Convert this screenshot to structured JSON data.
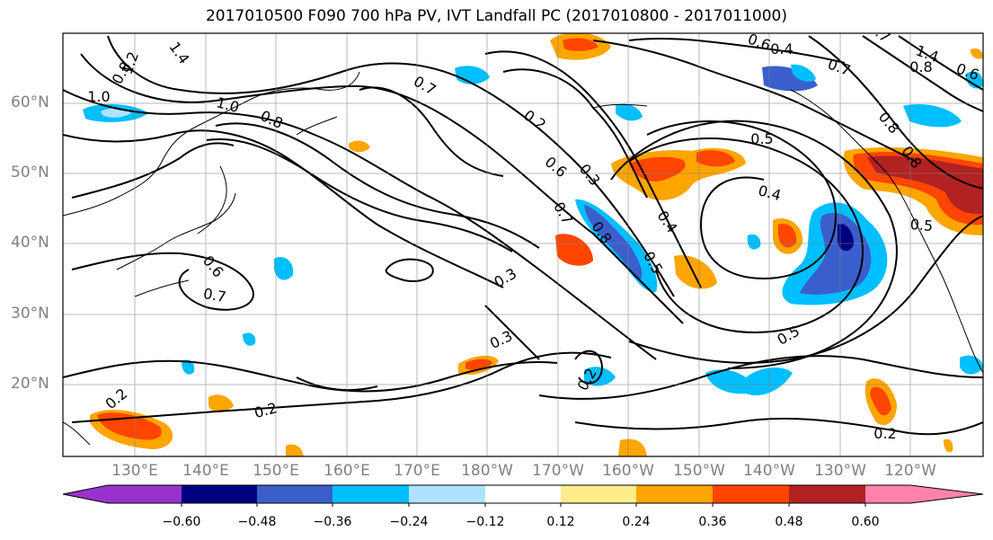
{
  "title": "2017010500 F090 700 hPa PV, IVT Landfall PC (2017010800 - 2017011000)",
  "lat_labels": [
    "60°N",
    "50°N",
    "40°N",
    "30°N",
    "20°N"
  ],
  "lon_labels": [
    "130°E",
    "140°E",
    "150°E",
    "160°E",
    "170°E",
    "180°W",
    "170°W",
    "160°W",
    "150°W",
    "140°W",
    "130°W",
    "120°W"
  ],
  "colorbar": {
    "ticks": [
      "−0.60",
      "−0.48",
      "−0.36",
      "−0.24",
      "−0.12",
      "0.12",
      "0.24",
      "0.36",
      "0.48",
      "0.60"
    ],
    "colors": [
      "#9932cc",
      "#000080",
      "#3a5fcd",
      "#00bfff",
      "#b0e2ff",
      "#ffffff",
      "#ffec8b",
      "#ffa500",
      "#ff4500",
      "#b22222",
      "#ff82ab"
    ]
  },
  "contour_labels": [
    "1.4",
    "0.8",
    "1.0",
    "1.2",
    "0.8",
    "1.0",
    "0.7",
    "0.2",
    "0.6",
    "0.3",
    "0.7",
    "0.8",
    "0.4",
    "0.5",
    "0.3",
    "0.3",
    "0.2",
    "0.2",
    "0.2",
    "0.6",
    "0.7",
    "0.4",
    "0.5",
    "0.8",
    "0.5",
    "0.5",
    "0.4",
    "0.8",
    "0.7",
    "0.6",
    "0.2",
    "1.4",
    "0.8",
    "0.7",
    "0.6"
  ],
  "colors": {
    "gridline": "#808080",
    "contour": "#000000",
    "coast": "#000000"
  }
}
